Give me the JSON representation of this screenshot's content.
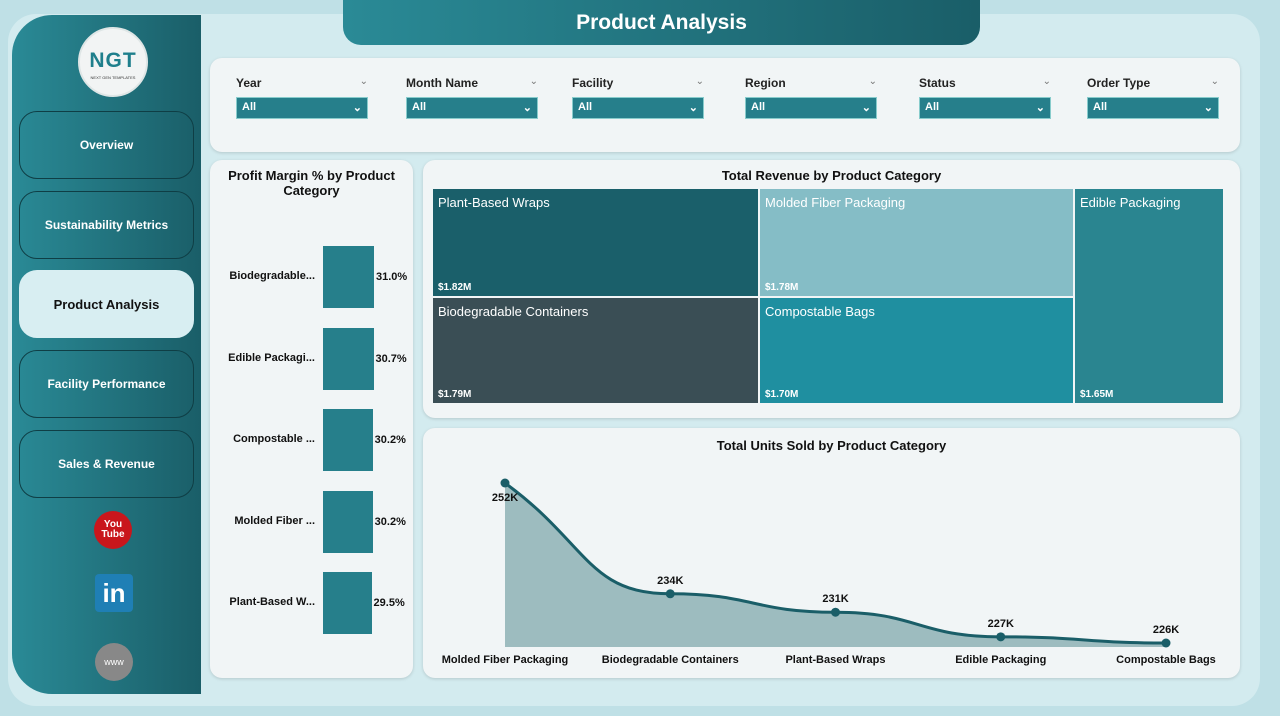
{
  "header": {
    "title": "Product Analysis"
  },
  "logo": {
    "text": "NGT",
    "subtext": "NEXT GEN TEMPLATES"
  },
  "sidebar": {
    "items": [
      {
        "label": "Overview"
      },
      {
        "label": "Sustainability Metrics"
      },
      {
        "label": "Product Analysis",
        "active": true
      },
      {
        "label": "Facility Performance"
      },
      {
        "label": "Sales & Revenue"
      }
    ],
    "social": [
      {
        "icon": "youtube-icon",
        "label": "You Tube"
      },
      {
        "icon": "linkedin-icon",
        "label": "in"
      },
      {
        "icon": "globe-www-icon",
        "label": "www"
      }
    ]
  },
  "filters": [
    {
      "label": "Year",
      "value": "All"
    },
    {
      "label": "Month Name",
      "value": "All"
    },
    {
      "label": "Facility",
      "value": "All"
    },
    {
      "label": "Region",
      "value": "All"
    },
    {
      "label": "Status",
      "value": "All"
    },
    {
      "label": "Order Type",
      "value": "All"
    }
  ],
  "colors": {
    "accent": "#267f8b",
    "sidebar": "#1f6f7a",
    "background": "#bfe0e6"
  },
  "chart_data": [
    {
      "type": "bar",
      "orientation": "horizontal",
      "title": "Profit Margin % by Product Category",
      "categories": [
        "Biodegradable...",
        "Edible Packagi...",
        "Compostable ...",
        "Molded Fiber ...",
        "Plant-Based W..."
      ],
      "values": [
        31.0,
        30.7,
        30.2,
        30.2,
        29.5
      ],
      "labels": [
        "31.0%",
        "30.7%",
        "30.2%",
        "30.2%",
        "29.5%"
      ],
      "unit": "%"
    },
    {
      "type": "treemap",
      "title": "Total Revenue by Product Category",
      "items": [
        {
          "name": "Plant-Based Wraps",
          "label": "$1.82M",
          "value": 1.82,
          "color": "#1a5f6a"
        },
        {
          "name": "Molded Fiber Packaging",
          "label": "$1.78M",
          "value": 1.78,
          "color": "#85bdc6"
        },
        {
          "name": "Edible Packaging",
          "label": "$1.65M",
          "value": 1.65,
          "color": "#2a8590"
        },
        {
          "name": "Biodegradable Containers",
          "label": "$1.79M",
          "value": 1.79,
          "color": "#3a4e55"
        },
        {
          "name": "Compostable Bags",
          "label": "$1.70M",
          "value": 1.7,
          "color": "#1f8fa0"
        }
      ]
    },
    {
      "type": "area",
      "title": "Total Units Sold by Product Category",
      "categories": [
        "Molded Fiber Packaging",
        "Biodegradable Containers",
        "Plant-Based Wraps",
        "Edible Packaging",
        "Compostable Bags"
      ],
      "values": [
        252,
        234,
        231,
        227,
        226
      ],
      "labels": [
        "252K",
        "234K",
        "231K",
        "227K",
        "226K"
      ],
      "unit": "K",
      "grid": false
    }
  ]
}
